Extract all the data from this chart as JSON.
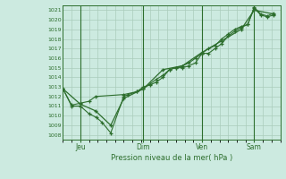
{
  "title": "Pression niveau de la mer( hPa )",
  "bg_color": "#cceae0",
  "grid_color": "#aaccbb",
  "line_color": "#2d6e2d",
  "ylim": [
    1007.5,
    1021.5
  ],
  "yticks": [
    1008,
    1009,
    1010,
    1011,
    1012,
    1013,
    1014,
    1015,
    1016,
    1017,
    1018,
    1019,
    1020,
    1021
  ],
  "xtick_labels": [
    "Jeu",
    "Dim",
    "Ven",
    "Sam"
  ],
  "xtick_positions": [
    0.08,
    0.37,
    0.64,
    0.88
  ],
  "series1": [
    [
      0.0,
      1012.8
    ],
    [
      0.04,
      1011.0
    ],
    [
      0.08,
      1011.0
    ],
    [
      0.12,
      1010.2
    ],
    [
      0.155,
      1009.8
    ],
    [
      0.18,
      1009.3
    ],
    [
      0.22,
      1008.2
    ],
    [
      0.28,
      1012.0
    ],
    [
      0.3,
      1012.2
    ],
    [
      0.34,
      1012.5
    ],
    [
      0.37,
      1013.0
    ],
    [
      0.4,
      1013.2
    ],
    [
      0.43,
      1013.5
    ],
    [
      0.46,
      1014.0
    ],
    [
      0.49,
      1014.8
    ],
    [
      0.52,
      1015.0
    ],
    [
      0.55,
      1015.0
    ],
    [
      0.58,
      1015.2
    ],
    [
      0.61,
      1015.5
    ],
    [
      0.64,
      1016.5
    ],
    [
      0.67,
      1016.5
    ],
    [
      0.7,
      1017.0
    ],
    [
      0.73,
      1017.5
    ],
    [
      0.76,
      1018.3
    ],
    [
      0.79,
      1018.8
    ],
    [
      0.82,
      1019.2
    ],
    [
      0.85,
      1019.5
    ],
    [
      0.88,
      1021.2
    ],
    [
      0.91,
      1020.5
    ],
    [
      0.94,
      1020.3
    ],
    [
      0.97,
      1020.5
    ]
  ],
  "series2": [
    [
      0.0,
      1012.8
    ],
    [
      0.04,
      1011.1
    ],
    [
      0.08,
      1011.3
    ],
    [
      0.12,
      1011.5
    ],
    [
      0.15,
      1012.0
    ],
    [
      0.28,
      1012.2
    ],
    [
      0.34,
      1012.5
    ],
    [
      0.37,
      1012.8
    ],
    [
      0.4,
      1013.3
    ],
    [
      0.43,
      1013.8
    ],
    [
      0.46,
      1014.2
    ],
    [
      0.49,
      1014.8
    ],
    [
      0.52,
      1015.0
    ],
    [
      0.55,
      1015.2
    ],
    [
      0.58,
      1015.5
    ],
    [
      0.61,
      1016.0
    ],
    [
      0.64,
      1016.5
    ],
    [
      0.67,
      1017.0
    ],
    [
      0.7,
      1017.3
    ],
    [
      0.73,
      1018.0
    ],
    [
      0.76,
      1018.5
    ],
    [
      0.79,
      1019.0
    ],
    [
      0.82,
      1019.3
    ],
    [
      0.85,
      1019.5
    ],
    [
      0.88,
      1021.3
    ],
    [
      0.91,
      1020.6
    ],
    [
      0.94,
      1020.4
    ],
    [
      0.97,
      1020.7
    ]
  ],
  "series3": [
    [
      0.0,
      1012.8
    ],
    [
      0.08,
      1011.2
    ],
    [
      0.15,
      1010.5
    ],
    [
      0.22,
      1009.0
    ],
    [
      0.28,
      1011.8
    ],
    [
      0.37,
      1012.8
    ],
    [
      0.46,
      1014.8
    ],
    [
      0.55,
      1015.2
    ],
    [
      0.64,
      1016.6
    ],
    [
      0.73,
      1017.8
    ],
    [
      0.82,
      1019.0
    ],
    [
      0.88,
      1021.0
    ],
    [
      0.97,
      1020.6
    ]
  ]
}
